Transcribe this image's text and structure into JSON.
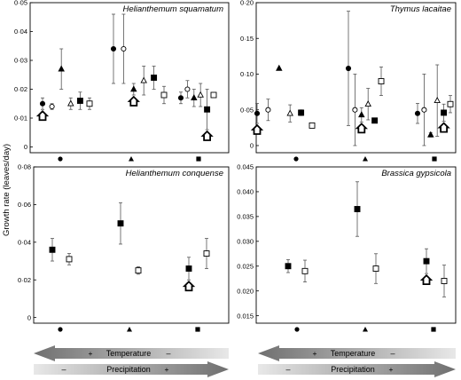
{
  "figure": {
    "ylabel": "Growth rate (leaves/day)",
    "gradients": {
      "temperature": {
        "label": "Temperature",
        "plus": "+",
        "minus": "–",
        "direction": "left"
      },
      "precipitation": {
        "label": "Precipitation",
        "plus": "+",
        "minus": "–",
        "direction": "right"
      }
    },
    "colors": {
      "axis": "#000000",
      "bar_dark": "#6f6f6f",
      "bar_light": "#e6e6e6",
      "error_bar": "#555555"
    }
  },
  "chart_data": [
    {
      "type": "scatter",
      "title": "Helianthemum squamatum",
      "xlabel": "",
      "ylabel": "Growth rate (leaves/day)",
      "ylim": [
        -0.002,
        0.05
      ],
      "yticks": [
        0,
        0.01,
        0.02,
        0.03,
        0.04,
        0.05
      ],
      "ytick_labels": [
        "0",
        "0·01",
        "0·02",
        "0·03",
        "0·04",
        "0·05"
      ],
      "categories": [
        "circle",
        "triangle",
        "square"
      ],
      "series": [
        {
          "marker": "circle-filled",
          "values": [
            0.015,
            0.034,
            0.017
          ],
          "errors": [
            0.002,
            0.012,
            0.002
          ]
        },
        {
          "marker": "circle-open",
          "values": [
            0.014,
            0.034,
            0.02
          ],
          "errors": [
            0.001,
            0.012,
            0.003
          ]
        },
        {
          "marker": "triangle-filled",
          "values": [
            0.027,
            0.02,
            0.017
          ],
          "errors": [
            0.007,
            0.002,
            0.003
          ]
        },
        {
          "marker": "triangle-open",
          "values": [
            0.015,
            0.023,
            0.018
          ],
          "errors": [
            0.002,
            0.005,
            0.004
          ]
        },
        {
          "marker": "square-filled",
          "values": [
            0.016,
            0.024,
            0.013
          ],
          "errors": [
            0.003,
            0.004,
            0.007
          ]
        },
        {
          "marker": "square-open",
          "values": [
            0.015,
            0.018,
            0.018
          ],
          "errors": [
            0.002,
            0.003,
            0.0
          ]
        }
      ],
      "home_markers": [
        0,
        1,
        2
      ]
    },
    {
      "type": "scatter",
      "title": "Thymus lacaitae",
      "xlabel": "",
      "ylabel": "",
      "ylim": [
        -0.01,
        0.2
      ],
      "yticks": [
        0,
        0.05,
        0.1,
        0.15,
        0.2
      ],
      "ytick_labels": [
        "0",
        "0·05",
        "0·10",
        "0·15",
        "0·20"
      ],
      "categories": [
        "circle",
        "triangle",
        "square"
      ],
      "series": [
        {
          "marker": "circle-filled",
          "values": [
            0.045,
            0.108,
            0.045
          ],
          "errors": [
            0.014,
            0.08,
            0.014
          ]
        },
        {
          "marker": "circle-open",
          "values": [
            0.05,
            0.05,
            0.05
          ],
          "errors": [
            0.015,
            0.05,
            0.05
          ]
        },
        {
          "marker": "triangle-filled",
          "values": [
            0.108,
            0.043,
            0.015
          ],
          "errors": [
            0.0,
            0.01,
            0.003
          ]
        },
        {
          "marker": "triangle-open",
          "values": [
            0.045,
            0.058,
            0.063
          ],
          "errors": [
            0.012,
            0.022,
            0.05
          ]
        },
        {
          "marker": "square-filled",
          "values": [
            0.046,
            0.035,
            0.046
          ],
          "errors": [
            0.004,
            0.003,
            0.012
          ]
        },
        {
          "marker": "square-open",
          "values": [
            0.028,
            0.09,
            0.058
          ],
          "errors": [
            0.0,
            0.02,
            0.012
          ]
        }
      ],
      "home_markers": [
        0,
        1,
        2
      ]
    },
    {
      "type": "scatter",
      "title": "Helianthemum conquense",
      "xlabel": "",
      "ylabel": "Growth rate (leaves/day)",
      "ylim": [
        -0.003,
        0.08
      ],
      "yticks": [
        0,
        0.02,
        0.04,
        0.06,
        0.08
      ],
      "ytick_labels": [
        "0",
        "0·02",
        "0·04",
        "0·06",
        "0·08"
      ],
      "categories": [
        "circle",
        "triangle",
        "square"
      ],
      "series": [
        {
          "marker": "square-filled",
          "values": [
            0.036,
            0.05,
            0.026
          ],
          "errors": [
            0.006,
            0.011,
            0.006
          ]
        },
        {
          "marker": "square-open",
          "values": [
            0.031,
            0.025,
            0.034
          ],
          "errors": [
            0.003,
            0.002,
            0.008
          ]
        }
      ],
      "home_markers": [
        2
      ]
    },
    {
      "type": "scatter",
      "title": "Brassica gypsicola",
      "xlabel": "",
      "ylabel": "",
      "ylim": [
        0.0135,
        0.045
      ],
      "yticks": [
        0.015,
        0.02,
        0.025,
        0.03,
        0.035,
        0.04,
        0.045
      ],
      "ytick_labels": [
        "0.015",
        "0.020",
        "0.025",
        "0.030",
        "0.035",
        "0.040",
        "0.045"
      ],
      "categories": [
        "circle",
        "triangle",
        "square"
      ],
      "series": [
        {
          "marker": "square-filled",
          "values": [
            0.025,
            0.0365,
            0.026
          ],
          "errors": [
            0.0013,
            0.0055,
            0.0025
          ]
        },
        {
          "marker": "square-open",
          "values": [
            0.024,
            0.0245,
            0.022
          ],
          "errors": [
            0.0022,
            0.003,
            0.0032
          ]
        }
      ],
      "home_markers": [
        2
      ]
    }
  ]
}
